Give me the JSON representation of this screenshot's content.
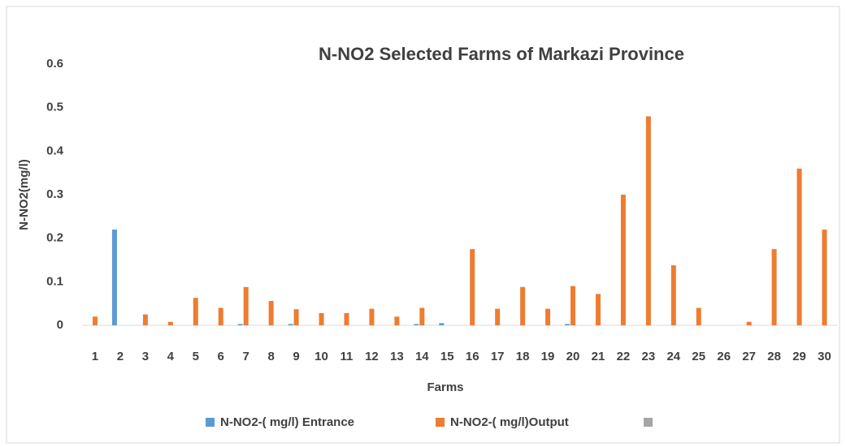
{
  "chart_data": {
    "type": "bar",
    "title": "N-NO2 Selected Farms of Markazi Province",
    "x_label": "Farms",
    "y_label": "N-NO2(mg/l)",
    "categories": [
      "1",
      "2",
      "3",
      "4",
      "5",
      "6",
      "7",
      "8",
      "9",
      "10",
      "11",
      "12",
      "13",
      "14",
      "15",
      "16",
      "17",
      "18",
      "19",
      "20",
      "21",
      "22",
      "23",
      "24",
      "25",
      "26",
      "27",
      "28",
      "29",
      "30"
    ],
    "series": [
      {
        "name": "N-NO2-( mg/l) Entrance",
        "color": "#5b9bd5",
        "values": [
          0,
          0.22,
          0,
          0,
          0,
          0,
          0.003,
          0,
          0.003,
          0,
          0,
          0,
          0,
          0.003,
          0.005,
          0,
          0,
          0,
          0,
          0.003,
          0,
          0,
          0,
          0,
          0,
          0,
          0,
          0,
          0,
          0
        ]
      },
      {
        "name": "N-NO2-( mg/l)Output",
        "color": "#ed7d31",
        "values": [
          0.02,
          0,
          0.025,
          0.008,
          0.063,
          0.04,
          0.088,
          0.056,
          0.037,
          0.028,
          0.028,
          0.038,
          0.02,
          0.04,
          0,
          0.175,
          0.038,
          0.088,
          0.038,
          0.09,
          0.072,
          0.3,
          0.48,
          0.138,
          0.04,
          0,
          0.008,
          0.175,
          0.36,
          0.22
        ]
      }
    ],
    "ylim": [
      0,
      0.6
    ],
    "yticks": [
      0,
      0.1,
      0.2,
      0.3,
      0.4,
      0.5,
      0.6
    ],
    "grid": false,
    "legend": "bottom"
  }
}
